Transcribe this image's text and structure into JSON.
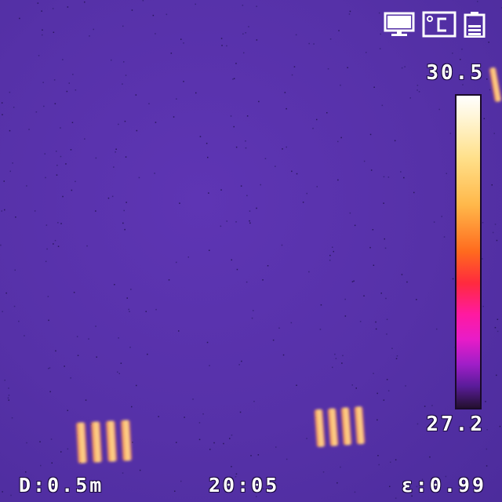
{
  "status_icons": [
    "monitor-icon",
    "celsius-icon",
    "battery-icon"
  ],
  "temperature_scale": {
    "max_label": "30.5",
    "min_label": "27.2",
    "palette": [
      "#ffffff",
      "#ffe08a",
      "#ffb84a",
      "#ff6a1e",
      "#ff2a3e",
      "#ff1aa0",
      "#a01ec8",
      "#5a1c9a",
      "#241030"
    ]
  },
  "footer": {
    "distance": "D:0.5m",
    "time": "20:05",
    "emissivity": "ε:0.99"
  },
  "colors": {
    "background": "#5631a8",
    "hotspot": "#ffb84a"
  }
}
